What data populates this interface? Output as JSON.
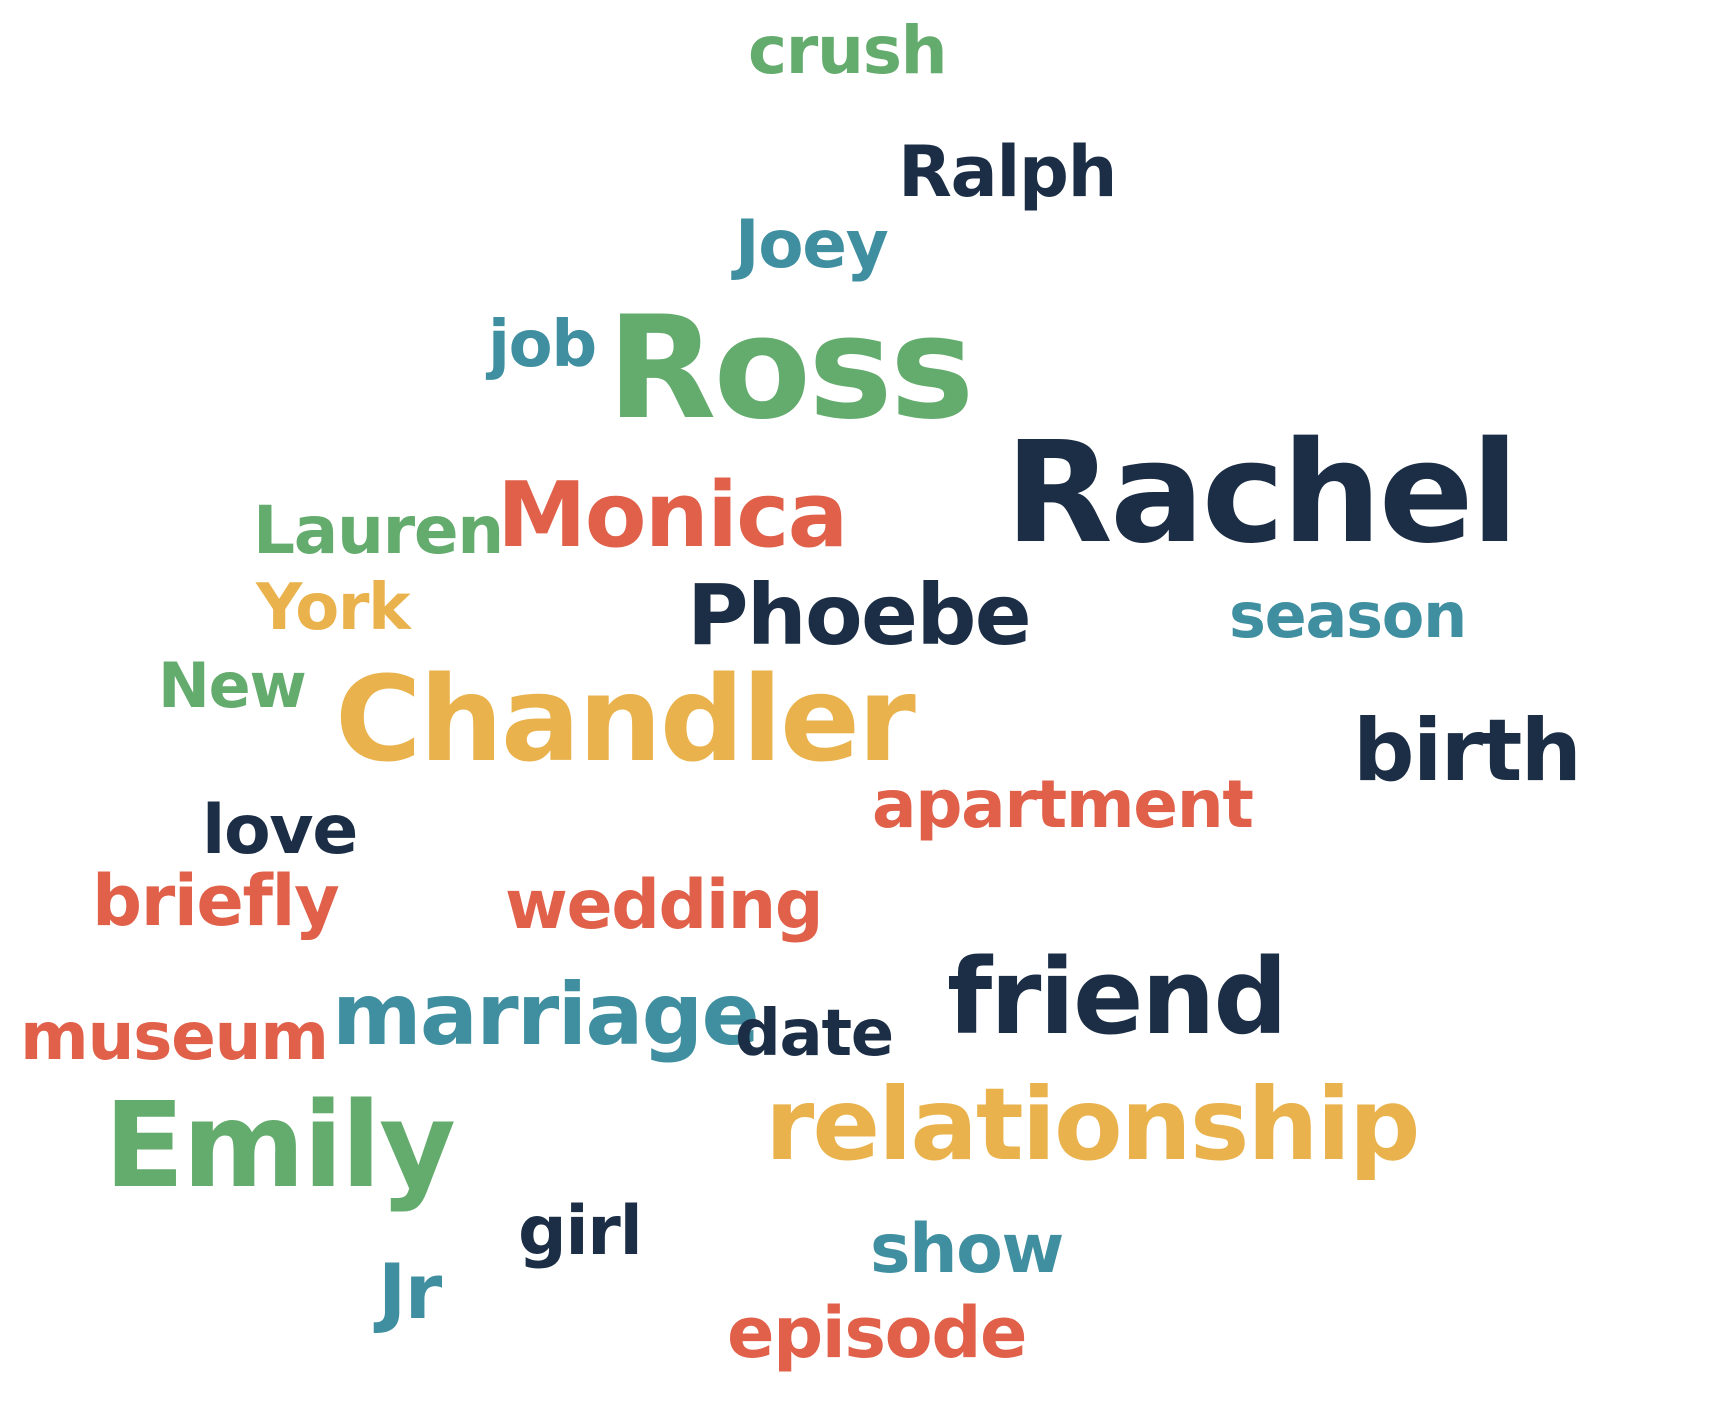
{
  "colors": {
    "green": "#64ab6e",
    "navy": "#1c2e45",
    "teal": "#3f8fa0",
    "orange": "#e0604a",
    "yellow": "#e9b24c"
  },
  "words": {
    "crush": "crush",
    "ralph": "Ralph",
    "joey": "Joey",
    "job": "job",
    "ross": "Ross",
    "rachel": "Rachel",
    "lauren": "Lauren",
    "monica": "Monica",
    "york": "York",
    "phoebe": "Phoebe",
    "season": "season",
    "new": "New",
    "chandler": "Chandler",
    "birth": "birth",
    "apartment": "apartment",
    "love": "love",
    "briefly": "briefly",
    "wedding": "wedding",
    "friend": "friend",
    "museum": "museum",
    "marriage": "marriage",
    "date": "date",
    "emily": "Emily",
    "relationship": "relationship",
    "girl": "girl",
    "show": "show",
    "jr": "Jr",
    "episode": "episode"
  },
  "word_colors": {
    "crush": "green",
    "ralph": "navy",
    "joey": "teal",
    "job": "teal",
    "ross": "green",
    "rachel": "navy",
    "lauren": "green",
    "monica": "orange",
    "york": "yellow",
    "phoebe": "navy",
    "season": "teal",
    "new": "green",
    "chandler": "yellow",
    "birth": "navy",
    "apartment": "orange",
    "love": "navy",
    "briefly": "orange",
    "wedding": "orange",
    "friend": "navy",
    "museum": "orange",
    "marriage": "teal",
    "date": "navy",
    "emily": "green",
    "relationship": "yellow",
    "girl": "navy",
    "show": "teal",
    "jr": "teal",
    "episode": "orange"
  }
}
